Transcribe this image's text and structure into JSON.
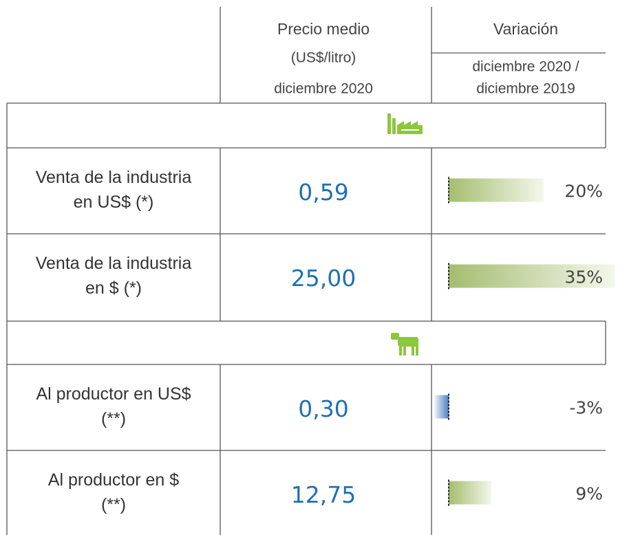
{
  "header": {
    "price": [
      "Precio medio",
      "(US$/litro)",
      "diciembre 2020"
    ],
    "variation": "Variación",
    "variation_period": [
      "diciembre 2020 /",
      "diciembre 2019"
    ]
  },
  "rows": [
    {
      "label": [
        "Venta de la industria",
        "en US$ (*)"
      ],
      "price": "0,59",
      "variation": {
        "value": 20,
        "label": "20%"
      }
    },
    {
      "label": [
        "Venta de la industria",
        "en $ (*)"
      ],
      "price": "25,00",
      "variation": {
        "value": 35,
        "label": "35%"
      }
    },
    {
      "label": [
        "Al productor en US$",
        "(**)"
      ],
      "price": "0,30",
      "variation": {
        "value": -3,
        "label": "-3%"
      }
    },
    {
      "label": [
        "Al productor en $",
        "(**)"
      ],
      "price": "12,75",
      "variation": {
        "value": 9,
        "label": "9%"
      }
    }
  ]
}
